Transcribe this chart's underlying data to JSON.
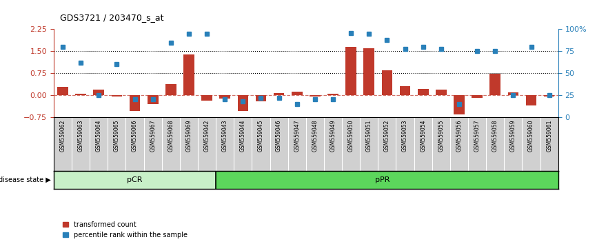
{
  "title": "GDS3721 / 203470_s_at",
  "samples": [
    "GSM559062",
    "GSM559063",
    "GSM559064",
    "GSM559065",
    "GSM559066",
    "GSM559067",
    "GSM559068",
    "GSM559069",
    "GSM559042",
    "GSM559043",
    "GSM559044",
    "GSM559045",
    "GSM559046",
    "GSM559047",
    "GSM559048",
    "GSM559049",
    "GSM559050",
    "GSM559051",
    "GSM559052",
    "GSM559053",
    "GSM559054",
    "GSM559055",
    "GSM559056",
    "GSM559057",
    "GSM559058",
    "GSM559059",
    "GSM559060",
    "GSM559061"
  ],
  "transformed_count": [
    0.28,
    0.05,
    0.18,
    -0.05,
    -0.55,
    -0.3,
    0.38,
    1.4,
    -0.18,
    -0.12,
    -0.55,
    -0.22,
    0.08,
    0.12,
    -0.05,
    0.05,
    1.65,
    1.6,
    0.85,
    0.3,
    0.22,
    0.18,
    -0.65,
    -0.1,
    0.72,
    0.1,
    -0.35,
    -0.05
  ],
  "percentile_rank": [
    80,
    62,
    25,
    60,
    20,
    20,
    85,
    95,
    95,
    20,
    18,
    22,
    22,
    15,
    20,
    20,
    96,
    95,
    88,
    78,
    80,
    78,
    15,
    75,
    75,
    25,
    80,
    25
  ],
  "pCR_count": 9,
  "pPR_count": 19,
  "ylim_left": [
    -0.75,
    2.25
  ],
  "ylim_right": [
    0,
    100
  ],
  "yticks_left": [
    -0.75,
    0,
    0.75,
    1.5,
    2.25
  ],
  "yticks_right": [
    0,
    25,
    50,
    75,
    100
  ],
  "hline_y": [
    0.75,
    1.5
  ],
  "bar_color": "#c0392b",
  "dot_color": "#2980b9",
  "pCR_color": "#c8f0c8",
  "pPR_color": "#5cd65c",
  "zero_line_color": "#c0392b",
  "bg_color": "#ffffff",
  "xtick_bg_color": "#d0d0d0",
  "label_transformed": "transformed count",
  "label_percentile": "percentile rank within the sample"
}
